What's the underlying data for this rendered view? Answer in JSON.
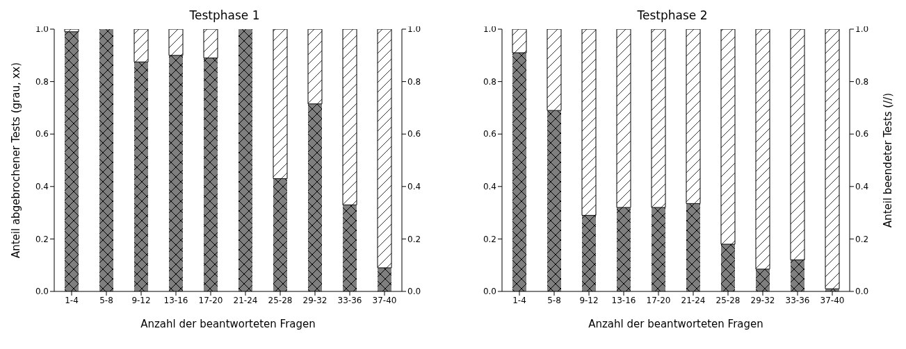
{
  "chart_data": [
    {
      "type": "bar",
      "title": "Testphase 1",
      "xlabel": "Anzahl der beantworteten Fragen",
      "ylabel": "Anteil abgebrochener Tests (grau, xx)",
      "categories": [
        "1-4",
        "5-8",
        "9-12",
        "13-16",
        "17-20",
        "21-24",
        "25-28",
        "29-32",
        "33-36",
        "37-40"
      ],
      "stacked": true,
      "series": [
        {
          "color": "#7f7f7f",
          "values": [
            0.99,
            1.0,
            0.875,
            0.9,
            0.89,
            1.0,
            0.43,
            0.715,
            0.33,
            0.09
          ]
        },
        {
          "color": "#ffffff",
          "values": [
            0.01,
            0.0,
            0.125,
            0.1,
            0.11,
            0.0,
            0.57,
            0.285,
            0.67,
            0.91
          ]
        }
      ],
      "ylim": [
        0,
        1
      ],
      "yticks": [
        {
          "value": 0,
          "label": "0.0"
        },
        {
          "value": 0.2,
          "label": "0.2"
        },
        {
          "value": 0.4,
          "label": "0.4"
        },
        {
          "value": 0.6,
          "label": "0.6"
        },
        {
          "value": 0.8,
          "label": "0.8"
        },
        {
          "value": 1,
          "label": "1.0"
        }
      ],
      "y2lim": [
        0,
        1
      ],
      "y2ticks": [
        {
          "value": 0,
          "label": "0.0"
        },
        {
          "value": 0.2,
          "label": "0.2"
        },
        {
          "value": 0.4,
          "label": "0.4"
        },
        {
          "value": 0.6,
          "label": "0.6"
        },
        {
          "value": 0.8,
          "label": "0.8"
        },
        {
          "value": 1,
          "label": "1.0"
        }
      ]
    },
    {
      "type": "bar",
      "title": "Testphase 2",
      "xlabel": "Anzahl der beantworteten Fragen",
      "y2label": "Anteil beendeter Tests (//)",
      "categories": [
        "1-4",
        "5-8",
        "9-12",
        "13-16",
        "17-20",
        "21-24",
        "25-28",
        "29-32",
        "33-36",
        "37-40"
      ],
      "stacked": true,
      "series": [
        {
          "color": "#7f7f7f",
          "values": [
            0.91,
            0.69,
            0.29,
            0.32,
            0.32,
            0.335,
            0.18,
            0.085,
            0.12,
            0.01
          ]
        },
        {
          "color": "#ffffff",
          "values": [
            0.09,
            0.31,
            0.71,
            0.68,
            0.68,
            0.665,
            0.82,
            0.915,
            0.88,
            0.99
          ]
        }
      ],
      "ylim": [
        0,
        1
      ],
      "yticks": [
        {
          "value": 0,
          "label": "0.0"
        },
        {
          "value": 0.2,
          "label": "0.2"
        },
        {
          "value": 0.4,
          "label": "0.4"
        },
        {
          "value": 0.6,
          "label": "0.6"
        },
        {
          "value": 0.8,
          "label": "0.8"
        },
        {
          "value": 1,
          "label": "1.0"
        }
      ],
      "y2lim": [
        0,
        1
      ],
      "y2ticks": [
        {
          "value": 0,
          "label": "0.0"
        },
        {
          "value": 0.2,
          "label": "0.2"
        },
        {
          "value": 0.4,
          "label": "0.4"
        },
        {
          "value": 0.6,
          "label": "0.6"
        },
        {
          "value": 0.8,
          "label": "0.8"
        },
        {
          "value": 1,
          "label": "1.0"
        }
      ]
    }
  ]
}
